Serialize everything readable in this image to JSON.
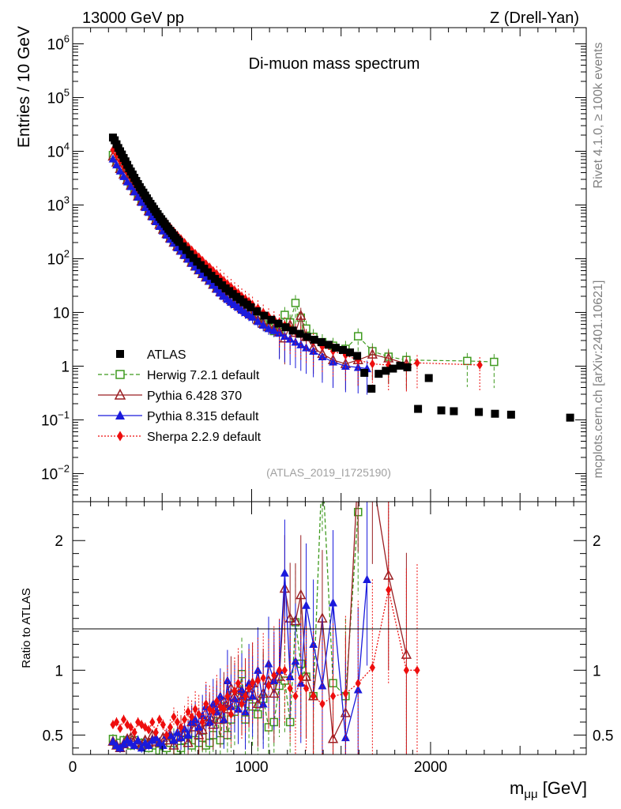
{
  "chart_data": {
    "type": "scatter",
    "header_left": "13000 GeV pp",
    "header_right": "Z (Drell-Yan)",
    "title": "Di-muon mass spectrum",
    "xlabel_main": "m",
    "xlabel_sub": "μμ",
    "xlabel_unit": " [GeV]",
    "ylabel": "Entries / 10 GeV",
    "ratio_ylabel": "Ratio to ATLAS",
    "side_label_top": "Rivet 4.1.0, ≥ 100k events",
    "side_label_bottom": "mcplots.cern.ch [arXiv:2401.10621]",
    "analysis_id": "(ATLAS_2019_I1725190)",
    "xlim": [
      0,
      2870
    ],
    "ylim": [
      0.003,
      2000000
    ],
    "ratio_ylim": [
      0.35,
      2.3
    ],
    "x_ticks": [
      0,
      1000,
      2000
    ],
    "y_ticks": [
      {
        "value": 0.01,
        "base": "10",
        "exp": "−2"
      },
      {
        "value": 0.1,
        "base": "10",
        "exp": "−1"
      },
      {
        "value": 1,
        "base": "1",
        "exp": ""
      },
      {
        "value": 10,
        "base": "10",
        "exp": ""
      },
      {
        "value": 100,
        "base": "10",
        "exp": "2"
      },
      {
        "value": 1000,
        "base": "10",
        "exp": "3"
      },
      {
        "value": 10000,
        "base": "10",
        "exp": "4"
      },
      {
        "value": 100000,
        "base": "10",
        "exp": "5"
      },
      {
        "value": 1000000,
        "base": "10",
        "exp": "6"
      }
    ],
    "ratio_ticks": [
      {
        "value": 0.5,
        "label": "0.5"
      },
      {
        "value": 1,
        "label": "1"
      },
      {
        "value": 2,
        "label": "2"
      }
    ],
    "series": [
      {
        "name": "ATLAS",
        "color": "#000000",
        "marker": "square",
        "x": [
          225,
          235,
          245,
          255,
          265,
          275,
          285,
          295,
          305,
          315,
          325,
          335,
          345,
          355,
          365,
          375,
          385,
          395,
          405,
          415,
          425,
          435,
          445,
          455,
          465,
          475,
          485,
          495,
          505,
          515,
          525,
          535,
          545,
          555,
          565,
          575,
          585,
          595,
          615,
          635,
          655,
          675,
          695,
          715,
          735,
          755,
          775,
          795,
          815,
          835,
          855,
          875,
          895,
          915,
          935,
          955,
          975,
          995,
          1030,
          1070,
          1110,
          1150,
          1190,
          1230,
          1270,
          1310,
          1350,
          1390,
          1430,
          1470,
          1510,
          1550,
          1590,
          1630,
          1670,
          1710,
          1750,
          1790,
          1830,
          1870,
          1930,
          1990,
          2060,
          2130,
          2270,
          2360,
          2450,
          2780
        ],
        "y": [
          18000,
          16000,
          13500,
          11500,
          10000,
          8700,
          7500,
          6500,
          5600,
          4800,
          4200,
          3700,
          3200,
          2800,
          2450,
          2150,
          1900,
          1700,
          1500,
          1330,
          1180,
          1050,
          940,
          840,
          750,
          675,
          600,
          545,
          490,
          445,
          400,
          360,
          330,
          300,
          270,
          245,
          225,
          205,
          170,
          145,
          120,
          103,
          88,
          76,
          65,
          56,
          48,
          42,
          37,
          32,
          28,
          25,
          22,
          19.5,
          17.5,
          15.5,
          14,
          12.5,
          10.5,
          8.7,
          7.3,
          6.2,
          5.3,
          4.6,
          4,
          3.5,
          3.1,
          2.8,
          2.5,
          2.2,
          2,
          1.8,
          1.55,
          0.75,
          0.38,
          0.72,
          0.82,
          0.9,
          1.02,
          0.95,
          0.16,
          0.6,
          0.15,
          0.145,
          0.14,
          0.13,
          0.125,
          0.11
        ]
      },
      {
        "name": "Herwig 7.2.1 default",
        "color": "#3f9a1f",
        "marker": "open-square",
        "line": "dashed",
        "x": [
          225,
          245,
          265,
          285,
          305,
          325,
          345,
          365,
          385,
          405,
          425,
          445,
          465,
          485,
          505,
          525,
          545,
          565,
          585,
          605,
          625,
          645,
          665,
          685,
          705,
          725,
          745,
          765,
          785,
          805,
          825,
          845,
          865,
          885,
          905,
          925,
          945,
          965,
          985,
          1005,
          1035,
          1065,
          1095,
          1125,
          1155,
          1185,
          1215,
          1245,
          1275,
          1305,
          1345,
          1395,
          1455,
          1525,
          1595,
          1675,
          1765,
          1865,
          2205,
          2355
        ],
        "y": [
          8500,
          6600,
          5000,
          3900,
          3000,
          2400,
          1900,
          1500,
          1220,
          980,
          800,
          650,
          530,
          440,
          360,
          300,
          250,
          210,
          175,
          145,
          125,
          105,
          88,
          75,
          64,
          55,
          47,
          41,
          35,
          31,
          27,
          24,
          21,
          18.5,
          16.5,
          15,
          13,
          11.5,
          10.3,
          9.2,
          7.5,
          6,
          5.2,
          4.5,
          4.3,
          9,
          6.5,
          15,
          8,
          5,
          3.5,
          2.8,
          2.4,
          2.1,
          3.6,
          1.9,
          1.5,
          1.3,
          1.25,
          1.2
        ]
      },
      {
        "name": "Pythia 6.428 370",
        "color": "#9a1f23",
        "marker": "open-triangle",
        "line": "solid",
        "x": [
          225,
          245,
          265,
          285,
          305,
          325,
          345,
          365,
          385,
          405,
          425,
          445,
          465,
          485,
          505,
          525,
          545,
          565,
          585,
          605,
          625,
          645,
          665,
          685,
          705,
          725,
          745,
          765,
          785,
          805,
          825,
          845,
          865,
          885,
          905,
          925,
          945,
          965,
          985,
          1005,
          1035,
          1065,
          1095,
          1125,
          1155,
          1185,
          1215,
          1245,
          1275,
          1305,
          1345,
          1395,
          1455,
          1525,
          1595,
          1675,
          1765,
          1865
        ],
        "y": [
          8000,
          6200,
          4700,
          3700,
          2900,
          2300,
          1820,
          1450,
          1170,
          950,
          770,
          630,
          520,
          430,
          350,
          290,
          240,
          200,
          170,
          142,
          120,
          102,
          85,
          72,
          61,
          52,
          45,
          39,
          33,
          28,
          24,
          21,
          19,
          17,
          15,
          13.5,
          12,
          11,
          9.8,
          8.8,
          7.2,
          6.2,
          5.4,
          4.9,
          4.3,
          3.3,
          5.8,
          4.2,
          8.7,
          3.5,
          2.2,
          1.7,
          1.3,
          1.1,
          1.3,
          1.65,
          1.4,
          1.1
        ]
      },
      {
        "name": "Pythia 8.315 default",
        "color": "#1a1adc",
        "marker": "triangle",
        "line": "solid",
        "x": [
          225,
          245,
          265,
          285,
          305,
          325,
          345,
          365,
          385,
          405,
          425,
          445,
          465,
          485,
          505,
          525,
          545,
          565,
          585,
          605,
          625,
          645,
          665,
          685,
          705,
          725,
          745,
          765,
          785,
          805,
          825,
          845,
          865,
          885,
          905,
          925,
          945,
          965,
          985,
          1005,
          1035,
          1065,
          1095,
          1125,
          1155,
          1185,
          1215,
          1245,
          1275,
          1305,
          1345,
          1395,
          1455,
          1525,
          1595,
          1645
        ],
        "y": [
          7200,
          5600,
          4300,
          3400,
          2700,
          2200,
          1750,
          1400,
          1120,
          900,
          730,
          600,
          490,
          400,
          330,
          275,
          230,
          195,
          160,
          138,
          115,
          98,
          82,
          70,
          60,
          51,
          44,
          38,
          32,
          27,
          23,
          20,
          17.5,
          15.5,
          14,
          12.5,
          11,
          10,
          9,
          8.2,
          6.8,
          5.8,
          5,
          4.6,
          4.1,
          3.6,
          3.2,
          2.8,
          2.5,
          2.2,
          1.9,
          1.5,
          1.2,
          1.0,
          0.95,
          0.9
        ]
      },
      {
        "name": "Sherpa 2.2.9 default",
        "color": "#ee0e0e",
        "marker": "diamond",
        "line": "dotted",
        "x": [
          225,
          245,
          265,
          285,
          305,
          325,
          345,
          365,
          385,
          405,
          425,
          445,
          465,
          485,
          505,
          525,
          545,
          565,
          585,
          605,
          625,
          645,
          665,
          685,
          705,
          725,
          745,
          765,
          785,
          805,
          825,
          845,
          865,
          885,
          905,
          925,
          945,
          965,
          985,
          1005,
          1035,
          1065,
          1095,
          1125,
          1155,
          1185,
          1215,
          1245,
          1275,
          1305,
          1345,
          1395,
          1455,
          1525,
          1595,
          1675,
          1765,
          1865,
          1925,
          2275
        ],
        "y": [
          10500,
          8500,
          6600,
          5200,
          4100,
          3300,
          2650,
          2150,
          1750,
          1420,
          1170,
          960,
          790,
          660,
          550,
          460,
          385,
          325,
          275,
          235,
          200,
          170,
          145,
          125,
          108,
          93,
          80,
          70,
          60,
          52,
          45,
          39,
          34,
          30,
          26,
          23,
          20,
          18,
          16,
          14,
          12,
          10,
          8.5,
          7.5,
          6.6,
          5.8,
          5,
          4.4,
          3.9,
          3.4,
          2.9,
          2.3,
          1.9,
          1.6,
          1.3,
          1.1,
          1.05,
          1,
          1.15,
          1.05
        ]
      }
    ],
    "ratio_series": [
      {
        "name": "Herwig 7.2.1 default",
        "x": [
          225,
          245,
          265,
          285,
          305,
          325,
          345,
          365,
          385,
          405,
          425,
          445,
          465,
          485,
          505,
          525,
          545,
          565,
          585,
          605,
          625,
          645,
          665,
          685,
          705,
          725,
          745,
          765,
          785,
          805,
          825,
          845,
          865,
          885,
          905,
          925,
          945,
          965,
          985,
          1005,
          1035,
          1065,
          1095,
          1125,
          1155,
          1185,
          1215,
          1245,
          1275,
          1305,
          1345,
          1395,
          1455,
          1525,
          1595
        ],
        "y": [
          0.47,
          0.43,
          0.44,
          0.46,
          0.45,
          0.42,
          0.46,
          0.43,
          0.44,
          0.43,
          0.4,
          0.44,
          0.42,
          0.38,
          0.36,
          0.4,
          0.44,
          0.48,
          0.38,
          0.4,
          0.46,
          0.5,
          0.42,
          0.46,
          0.44,
          0.48,
          0.42,
          0.44,
          0.5,
          0.66,
          0.46,
          0.72,
          0.5,
          0.62,
          0.68,
          0.75,
          0.97,
          0.62,
          0.74,
          0.72,
          0.66,
          0.78,
          0.56,
          0.6,
          0.88,
          0.92,
          0.6,
          1.37,
          1.05,
          0.95,
          0.8,
          2.6,
          0.9,
          0.8,
          2.22
        ]
      },
      {
        "name": "Pythia 6.428 370",
        "x": [
          225,
          245,
          265,
          285,
          305,
          325,
          345,
          365,
          385,
          405,
          425,
          445,
          465,
          485,
          505,
          525,
          545,
          565,
          585,
          605,
          625,
          645,
          665,
          685,
          705,
          725,
          745,
          765,
          785,
          805,
          825,
          845,
          865,
          885,
          905,
          925,
          945,
          965,
          985,
          1005,
          1035,
          1065,
          1095,
          1125,
          1155,
          1185,
          1215,
          1245,
          1275,
          1305,
          1345,
          1395,
          1455,
          1525,
          1595,
          1675,
          1765,
          1865
        ],
        "y": [
          0.45,
          0.42,
          0.4,
          0.43,
          0.47,
          0.48,
          0.46,
          0.44,
          0.42,
          0.46,
          0.44,
          0.5,
          0.45,
          0.44,
          0.48,
          0.46,
          0.5,
          0.42,
          0.48,
          0.55,
          0.52,
          0.44,
          0.6,
          0.56,
          0.5,
          0.54,
          0.6,
          0.64,
          0.58,
          0.72,
          0.62,
          0.76,
          0.7,
          0.86,
          0.8,
          0.85,
          0.78,
          0.8,
          0.86,
          0.9,
          0.74,
          0.82,
          0.92,
          0.82,
          0.95,
          1.63,
          1.4,
          1.38,
          1.58,
          0.95,
          0.8,
          1.4,
          0.47,
          0.67,
          2.55,
          2.5,
          1.73,
          1.12
        ]
      },
      {
        "name": "Pythia 8.315 default",
        "x": [
          225,
          245,
          265,
          285,
          305,
          325,
          345,
          365,
          385,
          405,
          425,
          445,
          465,
          485,
          505,
          525,
          545,
          565,
          585,
          605,
          625,
          645,
          665,
          685,
          705,
          725,
          745,
          765,
          785,
          805,
          825,
          845,
          865,
          885,
          905,
          925,
          945,
          965,
          985,
          1005,
          1035,
          1065,
          1095,
          1125,
          1155,
          1185,
          1215,
          1245,
          1275,
          1305,
          1345,
          1395,
          1455,
          1525,
          1595,
          1645
        ],
        "y": [
          0.45,
          0.42,
          0.4,
          0.43,
          0.46,
          0.44,
          0.42,
          0.46,
          0.4,
          0.44,
          0.42,
          0.46,
          0.48,
          0.44,
          0.42,
          0.5,
          0.5,
          0.46,
          0.52,
          0.48,
          0.55,
          0.5,
          0.6,
          0.62,
          0.56,
          0.65,
          0.72,
          0.6,
          0.74,
          0.68,
          0.8,
          0.62,
          0.92,
          0.72,
          0.78,
          0.7,
          0.85,
          0.68,
          0.9,
          0.8,
          1.0,
          0.74,
          1.05,
          0.92,
          1.0,
          1.75,
          0.95,
          1.07,
          0.9,
          1.5,
          1.2,
          0.88,
          1.52,
          0.48,
          0.85,
          1.7
        ]
      },
      {
        "name": "Sherpa 2.2.9 default",
        "x": [
          225,
          245,
          265,
          285,
          305,
          325,
          345,
          365,
          385,
          405,
          425,
          445,
          465,
          485,
          505,
          525,
          545,
          565,
          585,
          605,
          625,
          645,
          665,
          685,
          705,
          725,
          745,
          765,
          785,
          805,
          825,
          845,
          865,
          885,
          905,
          925,
          945,
          965,
          985,
          1005,
          1035,
          1065,
          1095,
          1125,
          1155,
          1185,
          1215,
          1245,
          1275,
          1305,
          1345,
          1395,
          1455,
          1525,
          1595,
          1675,
          1765,
          1865,
          1925
        ],
        "y": [
          0.58,
          0.6,
          0.55,
          0.62,
          0.58,
          0.56,
          0.52,
          0.6,
          0.58,
          0.56,
          0.54,
          0.6,
          0.52,
          0.62,
          0.58,
          0.5,
          0.56,
          0.64,
          0.6,
          0.56,
          0.62,
          0.68,
          0.64,
          0.7,
          0.66,
          0.6,
          0.74,
          0.7,
          0.68,
          0.76,
          0.72,
          0.7,
          0.8,
          0.66,
          0.84,
          0.9,
          0.74,
          0.8,
          0.86,
          0.9,
          0.92,
          0.94,
          0.88,
          0.96,
          1.0,
          1.0,
          0.86,
          0.8,
          0.94,
          0.86,
          0.8,
          0.74,
          0.8,
          0.82,
          0.9,
          1.02,
          1.62,
          1.0,
          1.0
        ]
      }
    ]
  }
}
